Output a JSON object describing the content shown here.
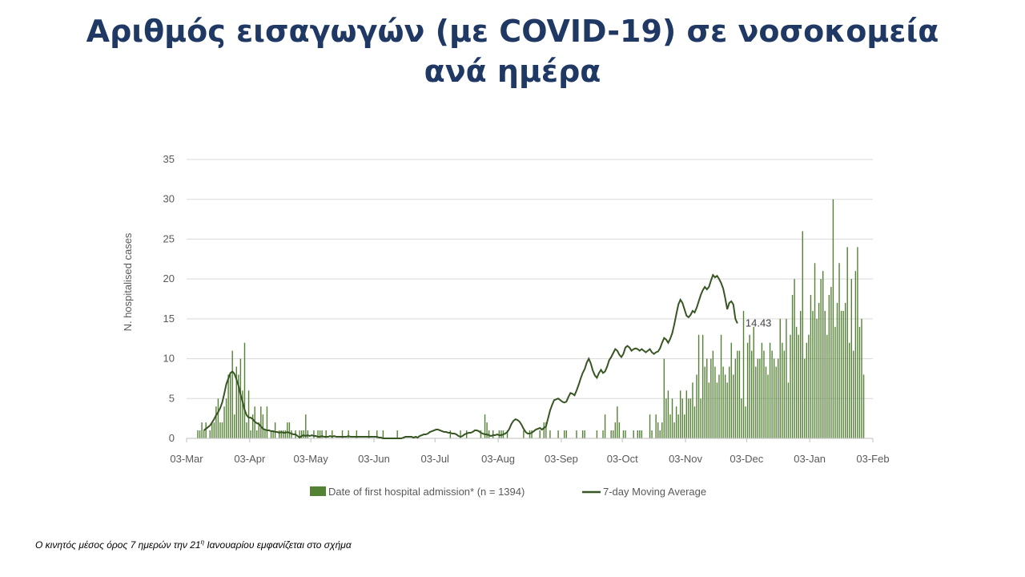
{
  "title_line1": "Αριθμός εισαγωγών (με COVID-19) σε νοσοκομεία",
  "title_line2": "ανά ημέρα",
  "footnote_pre": "Ο κινητός μέσος όρος 7 ημερών την 21",
  "footnote_sup": "η",
  "footnote_post": " Ιανουαρίου εμφανίζεται στο σχήμα",
  "chart_data": {
    "type": "bar",
    "ylabel": "N. hospitalised cases",
    "ylim": [
      0,
      35
    ],
    "yticks": [
      0,
      5,
      10,
      15,
      20,
      25,
      30,
      35
    ],
    "x_tick_labels": [
      "03-Mar",
      "03-Apr",
      "03-May",
      "03-Jun",
      "03-Jul",
      "03-Aug",
      "03-Sep",
      "03-Oct",
      "03-Nov",
      "03-Dec",
      "03-Jan",
      "03-Feb"
    ],
    "x_start": "2020-03-03",
    "last_ma_label": "14.43",
    "legend": {
      "bar": "Date of first hospital admission* (n = 1394)",
      "line": "7-day Moving Average"
    },
    "colors": {
      "bar": "#548235",
      "line": "#375623",
      "grid": "#d9d9d9",
      "axis": "#bfbfbf"
    },
    "series": [
      {
        "name": "Date of first hospital admission* (n = 1394)",
        "type": "bar",
        "start_offset": 5,
        "values": [
          1,
          1,
          2,
          1,
          2,
          0,
          1,
          2,
          2,
          4,
          5,
          2,
          2,
          4,
          5,
          8,
          8,
          11,
          3,
          9,
          8,
          10,
          6,
          12,
          2,
          6,
          1,
          3,
          4,
          1,
          2,
          4,
          3,
          1,
          4,
          0,
          1,
          1,
          2,
          0,
          1,
          1,
          1,
          1,
          2,
          2,
          1,
          0,
          1,
          0,
          1,
          1,
          1,
          3,
          1,
          0,
          0,
          1,
          0,
          1,
          1,
          1,
          0,
          1,
          0,
          0,
          1,
          0,
          0,
          0,
          0,
          1,
          0,
          0,
          1,
          0,
          0,
          0,
          1,
          0,
          0,
          0,
          0,
          0,
          1,
          0,
          0,
          0,
          1,
          0,
          0,
          1,
          0,
          0,
          0,
          0,
          0,
          0,
          1,
          0,
          0,
          0,
          0,
          0,
          0,
          0,
          0,
          0,
          0,
          0,
          0,
          0,
          0,
          0,
          0,
          0,
          0,
          0,
          0,
          0,
          0,
          0,
          0,
          0,
          1,
          0,
          0,
          0,
          0,
          1,
          0,
          0,
          1,
          0,
          0,
          0,
          0,
          0,
          0,
          1,
          0,
          3,
          2,
          1,
          0,
          1,
          0,
          0,
          1,
          1,
          1,
          0,
          1,
          0,
          0,
          0,
          0,
          0,
          0,
          0,
          1,
          0,
          0,
          1,
          1,
          0,
          0,
          0,
          1,
          0,
          2,
          2,
          0,
          1,
          0,
          0,
          0,
          1,
          0,
          0,
          1,
          1,
          0,
          0,
          0,
          0,
          1,
          0,
          0,
          1,
          1,
          0,
          0,
          0,
          0,
          0,
          1,
          0,
          0,
          1,
          3,
          0,
          0,
          1,
          1,
          2,
          4,
          2,
          0,
          1,
          1,
          0,
          0,
          0,
          1,
          0,
          1,
          1,
          1,
          0,
          0,
          0,
          3,
          1,
          0,
          3,
          2,
          1,
          2,
          10,
          5,
          6,
          3,
          5,
          2,
          4,
          3,
          6,
          5,
          3,
          6,
          5,
          5,
          7,
          4,
          8,
          13,
          5,
          13,
          9,
          10,
          7,
          10,
          11,
          9,
          7,
          8,
          13,
          9,
          8,
          7,
          9,
          12,
          8,
          10,
          11,
          11,
          5,
          16,
          4,
          12,
          13,
          11,
          14,
          9,
          10,
          10,
          12,
          11,
          9,
          8,
          12,
          11,
          10,
          9,
          10,
          15,
          12,
          11,
          15,
          7,
          13,
          18,
          20,
          14,
          13,
          16,
          26,
          10,
          12,
          13,
          18,
          16,
          22,
          15,
          17,
          20,
          21,
          16,
          13,
          18,
          19,
          30,
          14,
          17,
          22,
          16,
          16,
          17,
          24,
          12,
          20,
          11,
          21,
          24,
          14,
          15,
          8
        ]
      },
      {
        "name": "7-day Moving Average",
        "type": "line",
        "start_offset": 8,
        "values": [
          1,
          1.2,
          1.4,
          1.6,
          2,
          2.4,
          2.9,
          3.3,
          3.8,
          4.5,
          5.6,
          6.8,
          7.5,
          8.2,
          8.4,
          8.1,
          7.4,
          6.6,
          5.5,
          4.6,
          3.6,
          2.9,
          2.6,
          2.6,
          2.4,
          2.1,
          1.9,
          1.8,
          1.5,
          1.2,
          1.1,
          1.0,
          1.0,
          0.9,
          0.9,
          0.8,
          0.8,
          0.7,
          0.8,
          0.7,
          0.7,
          0.8,
          0.7,
          0.6,
          0.5,
          0.5,
          0.3,
          0.1,
          0.3,
          0.4,
          0.3,
          0.4,
          0.3,
          0.4,
          0.3,
          0.3,
          0.2,
          0.2,
          0.3,
          0.2,
          0.2,
          0.2,
          0.3,
          0.2,
          0.3,
          0.2,
          0.2,
          0.2,
          0.2,
          0.2,
          0.2,
          0.3,
          0.2,
          0.2,
          0.2,
          0.2,
          0.2,
          0.2,
          0.2,
          0.2,
          0.2,
          0.2,
          0.2,
          0.2,
          0.2,
          0.2,
          0.1,
          0.1,
          0.0,
          0.0,
          0.0,
          0.0,
          0.0,
          0.0,
          0.0,
          0.0,
          0.0,
          0.0,
          0.1,
          0.2,
          0.2,
          0.2,
          0.2,
          0.1,
          0.2,
          0.1,
          0.3,
          0.4,
          0.5,
          0.5,
          0.6,
          0.8,
          0.9,
          1.0,
          1.1,
          1.1,
          1.0,
          0.9,
          0.8,
          0.8,
          0.7,
          0.7,
          0.6,
          0.6,
          0.5,
          0.3,
          0.2,
          0.3,
          0.5,
          0.6,
          0.7,
          0.7,
          0.8,
          1.0,
          1.0,
          0.9,
          0.7,
          0.6,
          0.5,
          0.5,
          0.4,
          0.3,
          0.4,
          0.4,
          0.5,
          0.4,
          0.4,
          0.5,
          0.6,
          0.8,
          1.2,
          1.8,
          2.2,
          2.4,
          2.3,
          2.1,
          1.7,
          1.2,
          0.8,
          0.6,
          0.6,
          0.7,
          0.9,
          1.1,
          1.2,
          1.3,
          1.1,
          1.3,
          1.5,
          2.5,
          3.5,
          4.2,
          4.8,
          4.9,
          5.0,
          4.8,
          4.6,
          4.5,
          4.6,
          5.2,
          5.7,
          5.6,
          5.4,
          6.0,
          6.7,
          7.5,
          8.2,
          8.7,
          9.5,
          10.0,
          9.4,
          8.5,
          7.9,
          7.6,
          8.2,
          8.6,
          8.2,
          8.4,
          9.0,
          9.8,
          10.2,
          10.7,
          11.2,
          11.0,
          10.5,
          10.2,
          10.6,
          11.4,
          11.6,
          11.4,
          11.0,
          11.2,
          11.3,
          11.2,
          11.0,
          11.2,
          11.0,
          10.8,
          11.0,
          11.2,
          10.8,
          10.6,
          10.8,
          10.9,
          11.3,
          12.0,
          12.6,
          12.4,
          12.0,
          12.5,
          13.2,
          14.3,
          15.6,
          16.8,
          17.4,
          17.0,
          16.2,
          15.4,
          15.2,
          15.5,
          16.0,
          15.8,
          16.4,
          17.2,
          18.0,
          18.6,
          19.0,
          18.7,
          19.0,
          19.8,
          20.5,
          20.2,
          20.4,
          20.0,
          19.5,
          18.8,
          17.6,
          16.2,
          17.0,
          17.2,
          16.8,
          15.0,
          14.43
        ]
      }
    ]
  }
}
